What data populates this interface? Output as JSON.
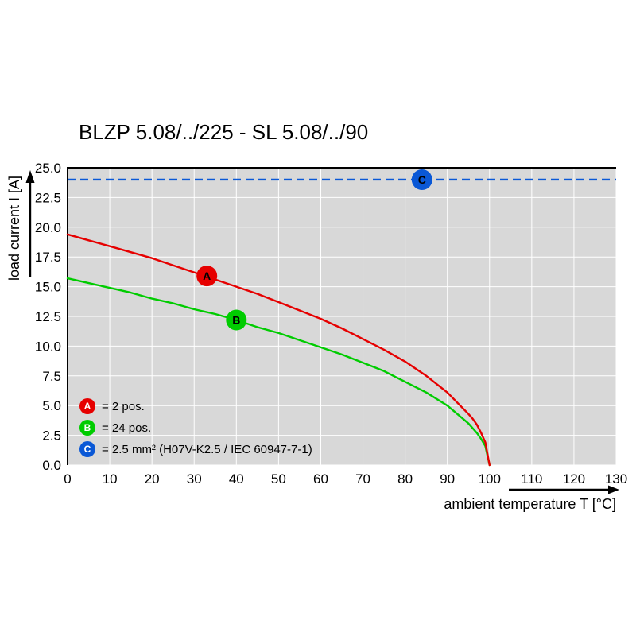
{
  "colors": {
    "plot_bg": "#d8d8d8",
    "grid": "#ffffff",
    "axis": "#000000",
    "series_a": "#e60000",
    "series_b": "#00cc00",
    "series_c": "#0a58d6"
  },
  "chart_data": {
    "type": "line",
    "title": "BLZP 5.08/../225 - SL 5.08/../90",
    "xlabel": "ambient temperature T [°C]",
    "ylabel": "load current I [A]",
    "xlim": [
      0,
      130
    ],
    "ylim": [
      0,
      25
    ],
    "grid": true,
    "legend_position": "inside-bottom-left",
    "x_ticks": [
      "0",
      "10",
      "20",
      "30",
      "40",
      "50",
      "60",
      "70",
      "80",
      "90",
      "100",
      "110",
      "120",
      "130"
    ],
    "y_ticks": [
      "0.0",
      "2.5",
      "5.0",
      "7.5",
      "10.0",
      "12.5",
      "15.0",
      "17.5",
      "20.0",
      "22.5",
      "25.0"
    ],
    "series": [
      {
        "name": "A",
        "label": "2 pos.",
        "color": "#e60000",
        "x": [
          0,
          5,
          10,
          15,
          20,
          25,
          30,
          35,
          40,
          45,
          50,
          55,
          60,
          65,
          70,
          75,
          80,
          85,
          90,
          95,
          96,
          97,
          98,
          99,
          100
        ],
        "values": [
          19.4,
          18.9,
          18.4,
          17.9,
          17.4,
          16.8,
          16.2,
          15.6,
          15.0,
          14.4,
          13.7,
          13.0,
          12.3,
          11.5,
          10.6,
          9.7,
          8.7,
          7.5,
          6.1,
          4.3,
          3.9,
          3.4,
          2.7,
          1.9,
          0
        ]
      },
      {
        "name": "B",
        "label": "24 pos.",
        "color": "#00cc00",
        "x": [
          0,
          5,
          10,
          15,
          20,
          25,
          30,
          35,
          40,
          45,
          50,
          55,
          60,
          65,
          70,
          75,
          80,
          85,
          90,
          95,
          96,
          97,
          98,
          99,
          100
        ],
        "values": [
          15.7,
          15.3,
          14.9,
          14.5,
          14.0,
          13.6,
          13.1,
          12.7,
          12.2,
          11.6,
          11.1,
          10.5,
          9.9,
          9.3,
          8.6,
          7.9,
          7.0,
          6.1,
          5.0,
          3.5,
          3.1,
          2.7,
          2.2,
          1.6,
          0
        ]
      },
      {
        "name": "C",
        "label": "2.5 mm² (H07V-K2.5 / IEC 60947-7-1)",
        "color": "#0a58d6",
        "style": "dashed",
        "constant": 24
      }
    ],
    "markers": [
      {
        "series": "A",
        "x": 33,
        "y": 15.9
      },
      {
        "series": "B",
        "x": 40,
        "y": 12.2
      },
      {
        "series": "C",
        "x": 84,
        "y": 24
      }
    ]
  },
  "legend": {
    "items": [
      {
        "letter": "A",
        "text": "= 2 pos.",
        "color": "#e60000"
      },
      {
        "letter": "B",
        "text": "= 24 pos.",
        "color": "#00cc00"
      },
      {
        "letter": "C",
        "text": "= 2.5 mm² (H07V-K2.5 / IEC 60947-7-1)",
        "color": "#0a58d6"
      }
    ]
  }
}
